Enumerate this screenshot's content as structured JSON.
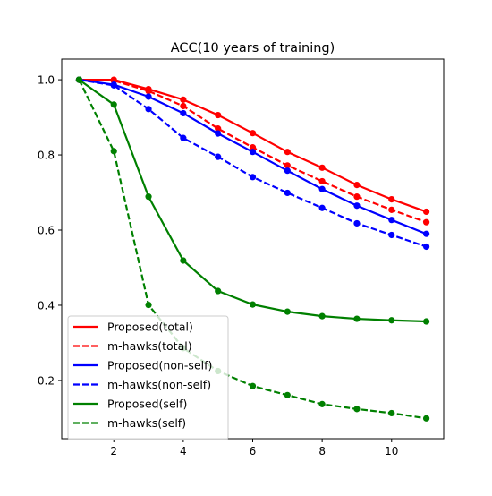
{
  "chart_data": {
    "type": "line",
    "title": "ACC(10 years of training)",
    "xlabel": "",
    "ylabel": "",
    "x": [
      1,
      2,
      3,
      4,
      5,
      6,
      7,
      8,
      9,
      10,
      11
    ],
    "xlim": [
      0.5,
      11.5
    ],
    "ylim": [
      0.045,
      1.055
    ],
    "xticks": [
      2,
      4,
      6,
      8,
      10
    ],
    "yticks": [
      0.2,
      0.4,
      0.6,
      0.8,
      1.0
    ],
    "xtick_labels": [
      "2",
      "4",
      "6",
      "8",
      "10"
    ],
    "ytick_labels": [
      "0.2",
      "0.4",
      "0.6",
      "0.8",
      "1.0"
    ],
    "grid": false,
    "legend_position": "lower-left",
    "series": [
      {
        "name": "Proposed(total)",
        "color": "#ff0000",
        "style": "solid",
        "values": [
          1.0,
          1.0,
          0.975,
          0.947,
          0.906,
          0.858,
          0.808,
          0.766,
          0.72,
          0.682,
          0.649
        ]
      },
      {
        "name": "m-hawks(total)",
        "color": "#ff0000",
        "style": "dashed",
        "values": [
          1.0,
          0.998,
          0.97,
          0.93,
          0.87,
          0.82,
          0.772,
          0.73,
          0.689,
          0.654,
          0.621
        ]
      },
      {
        "name": "Proposed(non-self)",
        "color": "#0000ff",
        "style": "solid",
        "values": [
          1.0,
          0.987,
          0.955,
          0.911,
          0.857,
          0.808,
          0.758,
          0.709,
          0.665,
          0.627,
          0.59
        ]
      },
      {
        "name": "m-hawks(non-self)",
        "color": "#0000ff",
        "style": "dashed",
        "values": [
          1.0,
          0.985,
          0.922,
          0.845,
          0.795,
          0.741,
          0.699,
          0.659,
          0.618,
          0.587,
          0.556
        ]
      },
      {
        "name": "Proposed(self)",
        "color": "#008000",
        "style": "solid",
        "values": [
          1.0,
          0.934,
          0.689,
          0.519,
          0.438,
          0.402,
          0.383,
          0.371,
          0.364,
          0.36,
          0.357
        ]
      },
      {
        "name": "m-hawks(self)",
        "color": "#008000",
        "style": "dashed",
        "values": [
          1.0,
          0.81,
          0.401,
          0.286,
          0.225,
          0.185,
          0.161,
          0.137,
          0.124,
          0.113,
          0.099
        ]
      }
    ]
  }
}
